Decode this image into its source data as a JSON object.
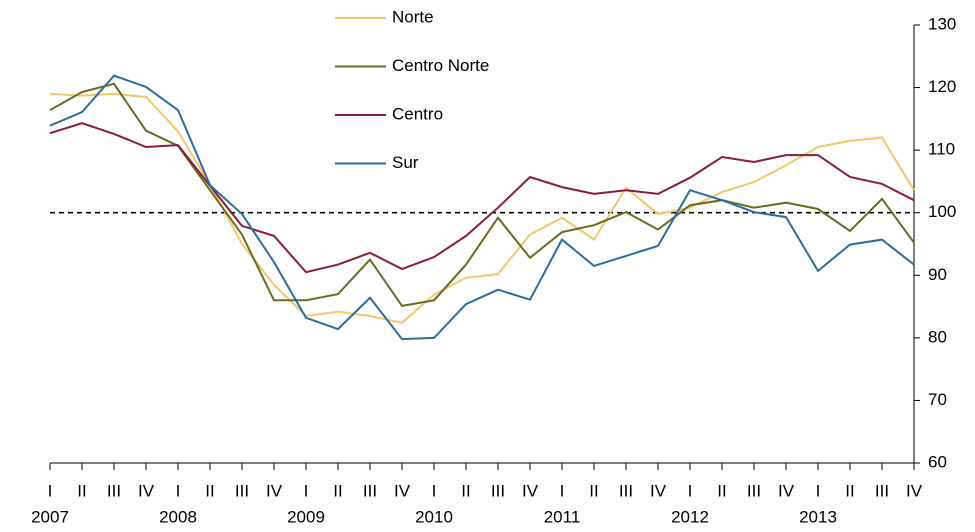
{
  "chart_data": {
    "type": "line",
    "categories": [
      "I",
      "II",
      "III",
      "IV",
      "I",
      "II",
      "III",
      "IV",
      "I",
      "II",
      "III",
      "IV",
      "I",
      "II",
      "III",
      "IV",
      "I",
      "II",
      "III",
      "IV",
      "I",
      "II",
      "III",
      "IV",
      "I",
      "II",
      "III",
      "IV"
    ],
    "year_labels": [
      "2007",
      "2008",
      "2009",
      "2010",
      "2011",
      "2012",
      "2013"
    ],
    "series": [
      {
        "name": "Norte",
        "color": "#f2c76a",
        "values": [
          119,
          118.7,
          119,
          118.5,
          113,
          104.5,
          95,
          88.5,
          83.5,
          84.2,
          83.5,
          82.4,
          86.9,
          89.6,
          90.2,
          96.5,
          99.2,
          95.7,
          104,
          99.8,
          100.8,
          103.3,
          104.9,
          107.6,
          110.5,
          111.5,
          112,
          103.6
        ]
      },
      {
        "name": "Centro Norte",
        "color": "#6b6b1e",
        "values": [
          116.4,
          119.3,
          120.6,
          113.1,
          110.7,
          103.6,
          96.5,
          86,
          86,
          87,
          92.5,
          85.1,
          86,
          91.7,
          99.2,
          92.8,
          96.9,
          98,
          100.1,
          97.3,
          101.2,
          102,
          100.8,
          101.6,
          100.6,
          97.1,
          102.2,
          95.2
        ]
      },
      {
        "name": "Centro",
        "color": "#8b1a3e",
        "values": [
          112.7,
          114.3,
          112.6,
          110.5,
          110.8,
          104.3,
          97.9,
          96.3,
          90.5,
          91.7,
          93.6,
          91,
          92.9,
          96.3,
          100.8,
          105.7,
          104.1,
          103,
          103.6,
          103,
          105.6,
          108.9,
          108.1,
          109.2,
          109.2,
          105.7,
          104.6,
          102
        ]
      },
      {
        "name": "Sur",
        "color": "#2a6e9e",
        "values": [
          113.9,
          116.1,
          121.9,
          120.1,
          116.4,
          104.4,
          99.8,
          92.1,
          83.2,
          81.4,
          86.4,
          79.8,
          80,
          85.4,
          87.7,
          86.1,
          95.7,
          91.5,
          93.1,
          94.7,
          103.6,
          102,
          100.1,
          99.3,
          90.7,
          94.9,
          95.7,
          91.7
        ]
      }
    ],
    "reference_line": 100,
    "ylim": [
      60,
      130
    ],
    "yticks": [
      60,
      70,
      80,
      90,
      100,
      110,
      120,
      130
    ],
    "y_axis_side": "right"
  }
}
